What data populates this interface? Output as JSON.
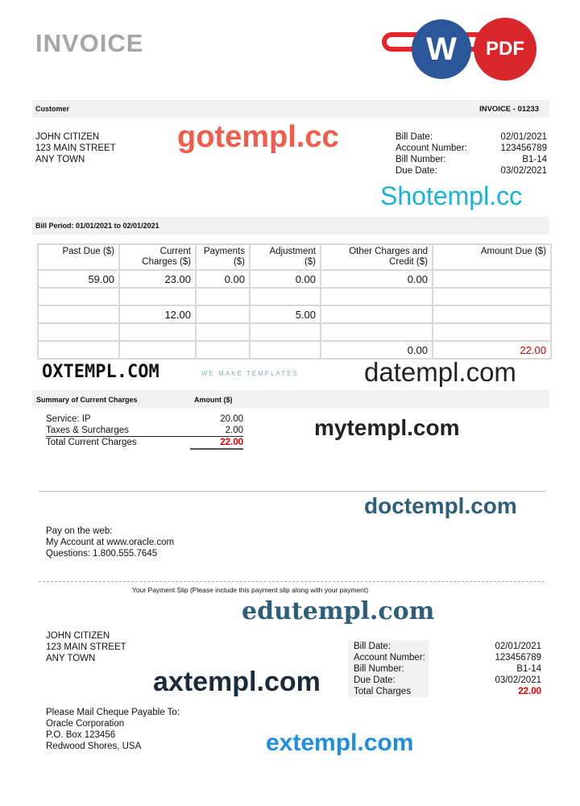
{
  "title": "INVOICE",
  "logo": {
    "oracle_color": "#e8242b",
    "word_letter": "W",
    "word_color": "#2b579a",
    "pdf_label": "PDF",
    "pdf_color": "#d8262a"
  },
  "header_bar": {
    "customer_label": "Customer",
    "invoice_no": "INVOICE - 01233"
  },
  "customer": {
    "name": "JOHN CITIZEN",
    "street": "123 MAIN STREET",
    "town": "ANY TOWN"
  },
  "bill_info": [
    {
      "label": "Bill Date:",
      "value": "02/01/2021"
    },
    {
      "label": "Account Number:",
      "value": "123456789"
    },
    {
      "label": "Bill Number:",
      "value": "B1-14"
    },
    {
      "label": "Due Date:",
      "value": "03/02/2021"
    }
  ],
  "bill_period": "Bill Period: 01/01/2021 to 02/01/2021",
  "table": {
    "headers": [
      [
        "Past Due ($)",
        ""
      ],
      [
        "Current",
        "Charges ($)"
      ],
      [
        "Payments",
        "($)"
      ],
      [
        "Adjustment",
        "($)"
      ],
      [
        "Other Charges and",
        "Credit ($)"
      ],
      [
        "Amount Due ($)",
        ""
      ]
    ],
    "rows": [
      [
        "59.00",
        "23.00",
        "0.00",
        "0.00",
        "0.00",
        ""
      ],
      [
        "",
        "",
        "",
        "",
        "",
        ""
      ],
      [
        "",
        "12.00",
        "",
        "5.00",
        "",
        ""
      ],
      [
        "",
        "",
        "",
        "",
        "",
        ""
      ],
      [
        "",
        "",
        "",
        "",
        "0.00",
        "22.00"
      ]
    ]
  },
  "summary": {
    "header": "Summary of Current Charges",
    "amount_header": "Amount ($)",
    "items": [
      {
        "label": "Service: IP",
        "value": "20.00"
      },
      {
        "label": "Taxes & Surcharges",
        "value": "2.00"
      }
    ],
    "total_label": "Total Current Charges",
    "total_value": "22.00",
    "total_color": "#e00000"
  },
  "pay": {
    "line1": "Pay on the web:",
    "line2": "My Account at www.oracle.com",
    "line3": "Questions: 1.800.555.7645"
  },
  "slip_text": "Your Payment Slip (Please include this payment slip along with your payment)",
  "slip_info": [
    {
      "label": "Bill Date:",
      "value": "02/01/2021"
    },
    {
      "label": "Account Number:",
      "value": "123456789"
    },
    {
      "label": "Bill Number:",
      "value": "B1-14"
    },
    {
      "label": "Due Date:",
      "value": "03/02/2021"
    },
    {
      "label": "Total Charges",
      "value": "22.00"
    }
  ],
  "mail": {
    "line1": "Please Mail Cheque Payable To:",
    "line2": "Oracle Corporation",
    "line3": "P.O. Box 123456",
    "line4": "Redwood Shores, USA"
  },
  "watermarks": {
    "gotempl": "gotempl.cc",
    "shotempl": "Shotempl.cc",
    "oxtempl": "OXTEMPL.COM",
    "oxtempl_sub": "WE MAKE TEMPLATES",
    "datempl": "datempl.com",
    "mytempl": "mytempl.com",
    "doctempl": "doctempl.com",
    "edutempl": "edutempl.com",
    "axtempl": "axtempl.com",
    "extempl": "extempl.com"
  }
}
